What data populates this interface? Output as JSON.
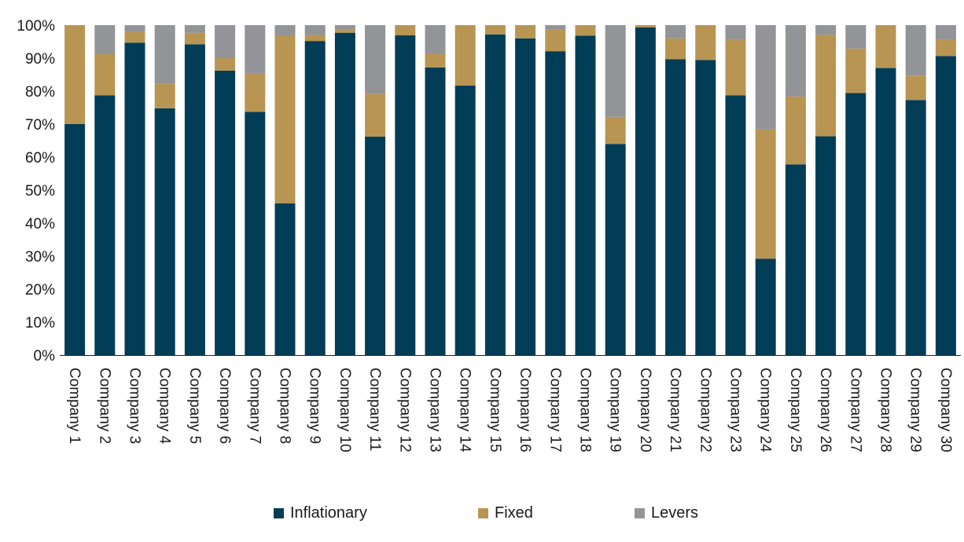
{
  "chart_data": {
    "type": "bar",
    "stacked": true,
    "categories": [
      "Company 1",
      "Company 2",
      "Company 3",
      "Company 4",
      "Company 5",
      "Company 6",
      "Company 7",
      "Company 8",
      "Company 9",
      "Company 10",
      "Company 11",
      "Company 12",
      "Company 13",
      "Company 14",
      "Company 15",
      "Company 16",
      "Company 17",
      "Company 18",
      "Company 19",
      "Company 20",
      "Company 21",
      "Company 22",
      "Company 23",
      "Company 24",
      "Company 25",
      "Company 26",
      "Company 27",
      "Company 28",
      "Company 29",
      "Company 30"
    ],
    "series": [
      {
        "name": "Inflationary",
        "color": "#023d58",
        "values": [
          70,
          78.7,
          94.7,
          74.8,
          94.2,
          86.2,
          73.7,
          46,
          95.2,
          97.7,
          66.2,
          96.9,
          87.2,
          81.7,
          97.2,
          96,
          92.1,
          96.8,
          64,
          99.3,
          89.7,
          89.4,
          78.7,
          29.2,
          57.8,
          66.3,
          79.4,
          87,
          77.3,
          90.6
        ]
      },
      {
        "name": "Fixed",
        "color": "#b89553",
        "values": [
          30,
          12.5,
          3.3,
          7.4,
          3.5,
          3.8,
          11.8,
          50.9,
          1.8,
          1,
          13,
          3.1,
          4.1,
          18.3,
          2.8,
          4,
          6.5,
          3.2,
          8.2,
          0.7,
          6.3,
          10.6,
          16.8,
          39.2,
          20.6,
          30.8,
          13.5,
          13,
          7.4,
          5.1
        ]
      },
      {
        "name": "Levers",
        "color": "#929497",
        "values": [
          0,
          8.8,
          2,
          17.8,
          2.3,
          10,
          14.5,
          3.1,
          3,
          1.3,
          20.8,
          0,
          8.7,
          0,
          0,
          0,
          1.4,
          0,
          27.8,
          0,
          4,
          0,
          4.5,
          31.6,
          21.6,
          2.9,
          7.1,
          0,
          15.3,
          4.3
        ]
      }
    ],
    "y_ticks": [
      "0%",
      "10%",
      "20%",
      "30%",
      "40%",
      "50%",
      "60%",
      "70%",
      "80%",
      "90%",
      "100%"
    ],
    "ylim": [
      0,
      100
    ],
    "legend_position": "bottom"
  }
}
